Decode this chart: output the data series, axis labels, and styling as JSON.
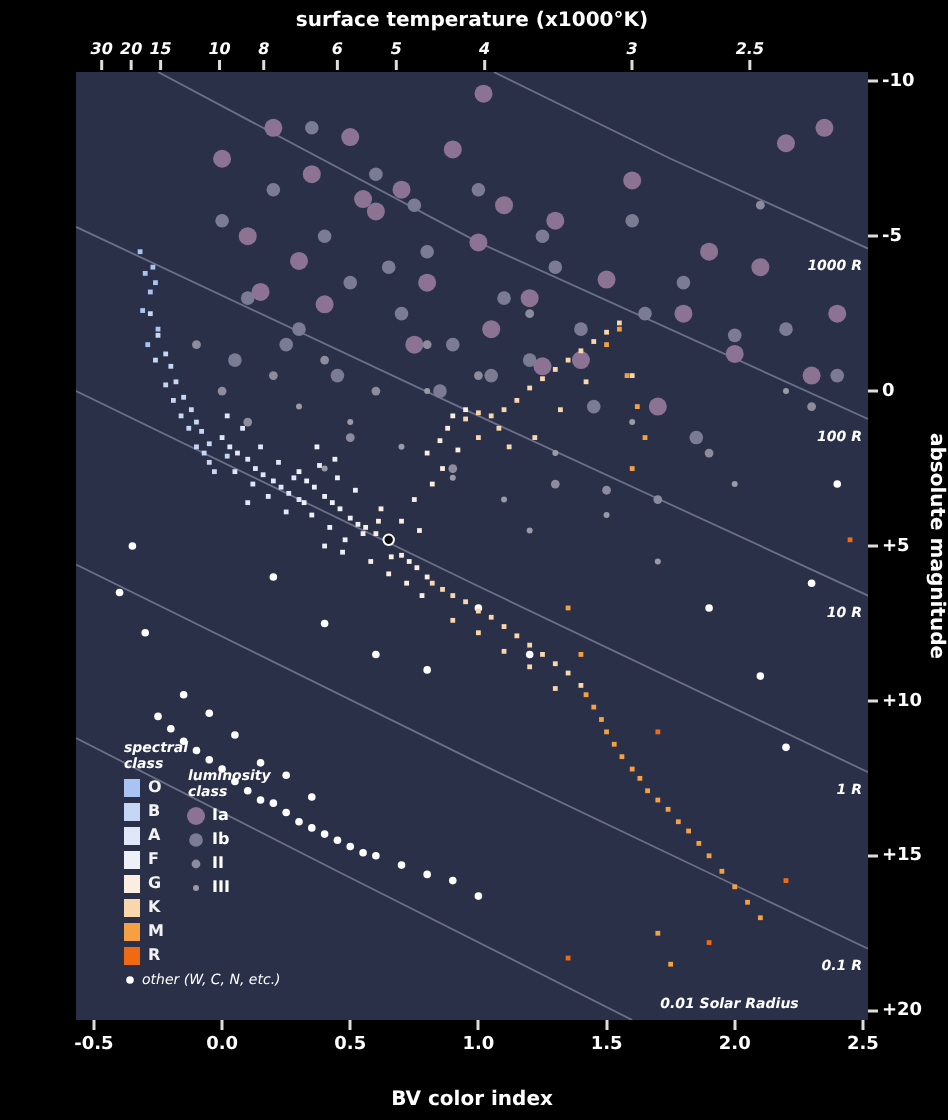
{
  "chart_data": {
    "type": "scatter",
    "xlabel": "BV color index",
    "ylabel": "absolute magnitude",
    "x2label": "surface temperature (x1000°K)",
    "legend_title": "spectral class",
    "annotations": [
      "luminosity class",
      "30",
      "20",
      "15",
      "10",
      "8",
      "6",
      "5",
      "4",
      "3",
      "2.5"
    ],
    "legend": "bottom left",
    "grid": false,
    "xlim": [
      -0.57,
      2.52
    ],
    "xticks": [
      -0.5,
      {
        "value": 0,
        "label": "0.0"
      },
      0.5,
      {
        "value": 1,
        "label": "1.0"
      },
      1.5,
      {
        "value": 2,
        "label": "2.0"
      },
      2.5
    ],
    "ylim": [
      20.3,
      -10.3
    ],
    "yticks": [
      -10,
      -5,
      0,
      {
        "value": 5,
        "label": "+5"
      },
      {
        "value": 10,
        "label": "+10"
      },
      {
        "value": 15,
        "label": "+15"
      },
      {
        "value": 20,
        "label": "+20"
      }
    ],
    "series": [
      {
        "name": "O",
        "color": "#a9c4f2",
        "marker": "square",
        "x": [
          -0.32,
          -0.3,
          -0.28,
          -0.31,
          -0.27,
          -0.25,
          -0.29,
          -0.26
        ],
        "values": [
          -4.5,
          -3.8,
          -3.2,
          -2.6,
          -4,
          -2,
          -1.5,
          -3.5
        ]
      },
      {
        "name": "B",
        "color": "#c6d7f6",
        "marker": "square",
        "x": [
          -0.28,
          -0.25,
          -0.22,
          -0.2,
          -0.18,
          -0.15,
          -0.12,
          -0.1,
          -0.08,
          -0.05,
          0.02,
          -0.22,
          -0.16,
          -0.1,
          -0.05,
          -0.26,
          -0.19,
          -0.13,
          -0.07,
          -0.03
        ],
        "values": [
          -2.5,
          -1.8,
          -1.2,
          -0.8,
          -0.3,
          0.2,
          0.6,
          1,
          1.3,
          1.7,
          2.1,
          -0.2,
          0.8,
          1.8,
          2.3,
          -1,
          0.3,
          1.2,
          2,
          2.6
        ]
      },
      {
        "name": "A",
        "color": "#dfe7f8",
        "marker": "square",
        "x": [
          0,
          0.03,
          0.06,
          0.1,
          0.13,
          0.16,
          0.2,
          0.23,
          0.26,
          0.3,
          0.05,
          0.12,
          0.18,
          0.25,
          0.08,
          0.15,
          0.22,
          0.28,
          0.02,
          0.1
        ],
        "values": [
          1.5,
          1.8,
          2,
          2.2,
          2.5,
          2.7,
          2.9,
          3.1,
          3.3,
          3.5,
          2.6,
          3,
          3.4,
          3.9,
          1.2,
          1.8,
          2.3,
          2.8,
          0.8,
          3.6
        ]
      },
      {
        "name": "F",
        "color": "#eef0f8",
        "marker": "square",
        "x": [
          0.3,
          0.33,
          0.36,
          0.4,
          0.43,
          0.46,
          0.5,
          0.53,
          0.35,
          0.42,
          0.48,
          0.38,
          0.45,
          0.52,
          0.32,
          0.4,
          0.47,
          0.55,
          0.37,
          0.44
        ],
        "values": [
          2.6,
          2.9,
          3.1,
          3.4,
          3.6,
          3.8,
          4.1,
          4.3,
          4,
          4.4,
          4.8,
          2.4,
          2.8,
          3.2,
          3.6,
          5,
          5.2,
          4.6,
          1.8,
          2.2
        ]
      },
      {
        "name": "G",
        "color": "#fbeddf",
        "marker": "square",
        "x": [
          0.56,
          0.6,
          0.61,
          0.66,
          0.7,
          0.73,
          0.76,
          0.8,
          0.58,
          0.65,
          0.72,
          0.78,
          0.62,
          0.7,
          0.77,
          0.8,
          0.85,
          0.88,
          0.9,
          0.95,
          0.82,
          0.86,
          0.92,
          0.75
        ],
        "values": [
          4.4,
          4.6,
          4.2,
          5.35,
          5.3,
          5.5,
          5.7,
          6,
          5.5,
          5.9,
          6.2,
          6.6,
          3.8,
          4.2,
          4.5,
          2,
          1.6,
          1.2,
          0.8,
          0.6,
          3,
          2.5,
          1.9,
          3.5
        ]
      },
      {
        "name": "K",
        "color": "#fad6ad",
        "marker": "square",
        "x": [
          0.82,
          0.86,
          0.9,
          0.95,
          1,
          1.05,
          1.1,
          1.15,
          1.2,
          1.25,
          1.3,
          1.35,
          1.4,
          0.9,
          1,
          1.1,
          1.2,
          1.3,
          0.95,
          1,
          1.05,
          1.1,
          1,
          1.08,
          1.15,
          1.2,
          1.25,
          1.3,
          1.35,
          1.4,
          1.45,
          1.5,
          1.55,
          1.12,
          1.22,
          1.32,
          1.42,
          1.6
        ],
        "values": [
          6.2,
          6.4,
          6.6,
          6.8,
          7.1,
          7.3,
          7.6,
          7.9,
          8.2,
          8.5,
          8.8,
          9.1,
          9.5,
          7.4,
          7.8,
          8.4,
          8.9,
          9.6,
          0.9,
          0.7,
          0.8,
          0.6,
          1.5,
          1.2,
          0.3,
          -0.1,
          -0.4,
          -0.7,
          -1,
          -1.3,
          -1.6,
          -1.9,
          -2.2,
          1.8,
          1.5,
          0.6,
          -0.3,
          -0.5
        ]
      },
      {
        "name": "M",
        "color": "#f5a043",
        "marker": "square",
        "x": [
          1.42,
          1.45,
          1.48,
          1.5,
          1.53,
          1.56,
          1.6,
          1.63,
          1.66,
          1.7,
          1.74,
          1.78,
          1.82,
          1.86,
          1.9,
          1.95,
          2,
          2.05,
          1.5,
          1.58,
          1.62,
          1.55,
          1.6,
          1.65,
          1.7,
          1.35,
          1.4,
          2.1,
          1.75
        ],
        "values": [
          9.8,
          10.2,
          10.6,
          11,
          11.4,
          11.8,
          12.2,
          12.5,
          12.9,
          13.2,
          13.5,
          13.9,
          14.2,
          14.6,
          15,
          15.5,
          16,
          16.5,
          -1.5,
          -0.5,
          0.5,
          -2,
          2.5,
          1.5,
          17.5,
          7,
          8.5,
          17,
          18.5
        ]
      },
      {
        "name": "R",
        "color": "#f06a12",
        "marker": "square",
        "x": [
          2.45,
          1.35,
          2.2,
          1.9,
          1.7
        ],
        "values": [
          4.8,
          18.3,
          15.8,
          17.8,
          11
        ]
      },
      {
        "name": "other (W, C, N, etc.)",
        "color": "#ffffff",
        "marker": "circle",
        "x": [
          -0.25,
          -0.2,
          -0.15,
          -0.1,
          -0.05,
          0,
          0.05,
          0.1,
          0.15,
          0.2,
          0.25,
          0.3,
          0.35,
          0.4,
          0.45,
          0.5,
          0.55,
          0.6,
          0.7,
          0.8,
          0.9,
          1,
          -0.15,
          -0.05,
          0.05,
          0.15,
          0.25,
          0.35,
          -0.4,
          -0.35,
          -0.3,
          0.2,
          0.4,
          0.6,
          0.8,
          1,
          1.2,
          1.9,
          2.1,
          2.3,
          2.4,
          2.2
        ],
        "values": [
          10.5,
          10.9,
          11.3,
          11.6,
          11.9,
          12.2,
          12.6,
          12.9,
          13.2,
          13.3,
          13.6,
          13.9,
          14.1,
          14.3,
          14.5,
          14.7,
          14.9,
          15,
          15.3,
          15.6,
          15.8,
          16.3,
          9.8,
          10.4,
          11.1,
          12,
          12.4,
          13.1,
          6.5,
          5,
          7.8,
          6,
          7.5,
          8.5,
          9,
          7,
          8.5,
          7,
          9.2,
          6.2,
          3,
          11.5
        ]
      },
      {
        "name": "Ia",
        "color": "#8c7394",
        "marker": "circle",
        "x": [
          0,
          0.2,
          0.35,
          0.5,
          0.7,
          0.9,
          1.1,
          1.3,
          1.6,
          1.9,
          2.2,
          2.35,
          0.1,
          0.3,
          0.6,
          0.8,
          1,
          1.2,
          1.5,
          1.8,
          2.1,
          2.4,
          0.4,
          0.75,
          1.05,
          1.4,
          1.7,
          2,
          2.3,
          0.15,
          0.55,
          1.25,
          1.02
        ],
        "values": [
          -7.5,
          -8.5,
          -7,
          -8.2,
          -6.5,
          -7.8,
          -6,
          -5.5,
          -6.8,
          -4.5,
          -8,
          -8.5,
          -5,
          -4.2,
          -5.8,
          -3.5,
          -4.8,
          -3,
          -3.6,
          -2.5,
          -4,
          -2.5,
          -2.8,
          -1.5,
          -2,
          -1,
          0.5,
          -1.2,
          -0.5,
          -3.2,
          -6.2,
          -0.8,
          -9.6
        ]
      },
      {
        "name": "Ib",
        "color": "#7b7c93",
        "marker": "circle",
        "x": [
          0,
          0.1,
          0.2,
          0.3,
          0.4,
          0.5,
          0.6,
          0.7,
          0.8,
          0.9,
          1,
          1.1,
          1.2,
          1.3,
          1.4,
          1.6,
          1.8,
          2,
          2.2,
          0.05,
          0.25,
          0.45,
          0.65,
          0.85,
          1.05,
          1.25,
          1.45,
          1.65,
          1.85,
          2.4,
          0.35,
          0.75
        ],
        "values": [
          -5.5,
          -3,
          -6.5,
          -2,
          -5,
          -3.5,
          -7,
          -2.5,
          -4.5,
          -1.5,
          -6.5,
          -3,
          -1,
          -4,
          -2,
          -5.5,
          -3.5,
          -1.8,
          -2,
          -1,
          -1.5,
          -0.5,
          -4,
          0,
          -0.5,
          -5,
          0.5,
          -2.5,
          1.5,
          -0.5,
          -8.5,
          -6
        ]
      },
      {
        "name": "II",
        "color": "#8c8c9e",
        "marker": "circle",
        "x": [
          -0.1,
          0,
          0.2,
          0.4,
          0.6,
          0.8,
          1,
          1.2,
          1.5,
          1.9,
          2.3,
          0.1,
          0.5,
          0.9,
          1.3,
          1.7,
          2.1
        ],
        "values": [
          -1.5,
          0,
          -0.5,
          -1,
          0,
          -1.5,
          -0.5,
          -2.5,
          3.2,
          2,
          0.5,
          1,
          1.5,
          2.5,
          3,
          3.5,
          -6
        ]
      },
      {
        "name": "III",
        "color": "#9a9aa6",
        "marker": "circle",
        "x": [
          0.3,
          0.5,
          0.7,
          0.9,
          1.1,
          1.3,
          1.5,
          1.7,
          2,
          0.4,
          0.8,
          1.2,
          1.6,
          2.2
        ],
        "values": [
          0.5,
          1,
          1.8,
          2.8,
          3.5,
          2,
          4,
          5.5,
          3,
          2.5,
          0,
          4.5,
          1,
          0
        ]
      },
      {
        "color": "#111111",
        "marker": "circle",
        "x": [
          0.65
        ],
        "values": [
          4.8
        ]
      },
      {
        "type": "line",
        "name": "1000 R",
        "color": "#6b6f88",
        "marker": "none",
        "x": [
          1.06,
          1.75,
          2.52
        ],
        "values": [
          -10.3,
          -7.5,
          -4.6
        ]
      },
      {
        "type": "line",
        "name": "100 R",
        "color": "#6b6f88",
        "marker": "none",
        "x": [
          -0.25,
          1,
          2.52
        ],
        "values": [
          -10.3,
          -4.8,
          0.9
        ]
      },
      {
        "type": "line",
        "name": "10 R",
        "color": "#6b6f88",
        "marker": "none",
        "x": [
          -0.57,
          1,
          2.52
        ],
        "values": [
          -5.3,
          0.8,
          6.6
        ]
      },
      {
        "type": "line",
        "name": "1 R",
        "color": "#6b6f88",
        "marker": "none",
        "x": [
          -0.57,
          1,
          2.52
        ],
        "values": [
          0,
          6.3,
          12.3
        ]
      },
      {
        "type": "line",
        "name": "0.1 R",
        "color": "#6b6f88",
        "marker": "none",
        "x": [
          -0.57,
          1,
          2.52
        ],
        "values": [
          5.6,
          12,
          18
        ]
      },
      {
        "type": "line",
        "name": "0.01 Solar Radius",
        "color": "#6b6f88",
        "marker": "none",
        "x": [
          -0.57,
          0.45,
          1.6
        ],
        "values": [
          11.2,
          15.5,
          20.3
        ]
      }
    ]
  }
}
